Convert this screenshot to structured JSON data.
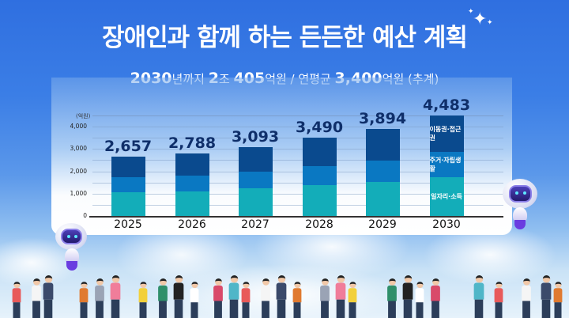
{
  "header": {
    "title": "장애인과 함께 하는 든든한 예산 계획",
    "subtitle_parts": [
      {
        "text": "2030",
        "bold": true
      },
      {
        "text": "년까지 ",
        "bold": false
      },
      {
        "text": "2",
        "bold": true
      },
      {
        "text": "조 ",
        "bold": false
      },
      {
        "text": "405",
        "bold": true
      },
      {
        "text": "억원 / 연평균 ",
        "bold": false
      },
      {
        "text": "3,400",
        "bold": true
      },
      {
        "text": "억원 (추계)",
        "bold": false
      }
    ],
    "sparkle_icon": "✦"
  },
  "chart_data": {
    "type": "bar",
    "stacked": true,
    "title": "장애인과 함께 하는 든든한 예산 계획",
    "subtitle": "2030년까지 2조 405억원 / 연평균 3,400억원 (추계)",
    "unit_label": "(억원)",
    "xlabel": "",
    "ylabel": "(억원)",
    "ylim": [
      0,
      4500
    ],
    "yticks": [
      0,
      1000,
      2000,
      3000,
      4000
    ],
    "ytick_labels": [
      "0",
      "1,000",
      "2,000",
      "3,000",
      "4,000"
    ],
    "grid": true,
    "legend_position": "inside last bar",
    "categories": [
      "2025",
      "2026",
      "2027",
      "2028",
      "2029",
      "2030"
    ],
    "totals": [
      2657,
      2788,
      3093,
      3490,
      3894,
      4483
    ],
    "total_labels": [
      "2,657",
      "2,788",
      "3,093",
      "3,490",
      "3,894",
      "4,483"
    ],
    "series": [
      {
        "name": "일자리·소득",
        "color": "#13adb9",
        "values": [
          1060,
          1100,
          1230,
          1380,
          1520,
          1750
        ]
      },
      {
        "name": "주거·자립생활",
        "color": "#0a78c2",
        "values": [
          660,
          700,
          750,
          850,
          940,
          1100
        ]
      },
      {
        "name": "이동권·접근권",
        "color": "#0a4a8e",
        "values": [
          937,
          988,
          1113,
          1260,
          1434,
          1633
        ]
      }
    ]
  },
  "colors": {
    "title_text": "#ffffff",
    "total_label": "#0f2f6a",
    "background_top": "#2f6fe0"
  }
}
